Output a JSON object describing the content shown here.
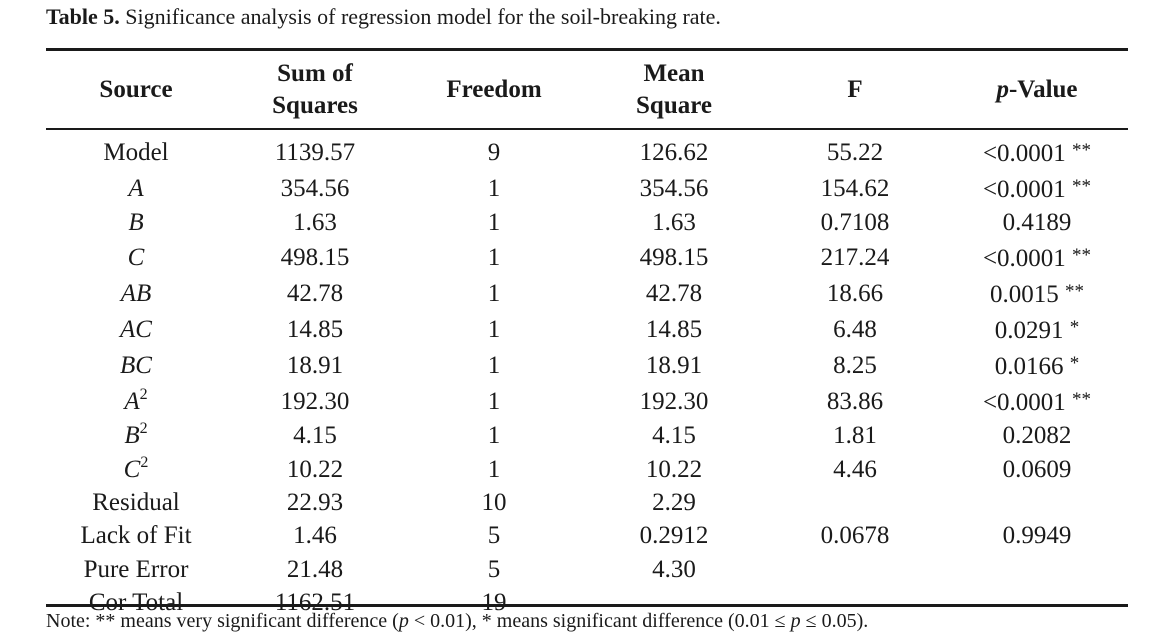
{
  "caption": {
    "label": "Table 5.",
    "text": "Significance analysis of regression model for the soil-breaking rate."
  },
  "headers": {
    "source": "Source",
    "sum_of_squares_line1": "Sum of",
    "sum_of_squares_line2": "Squares",
    "freedom": "Freedom",
    "mean_square_line1": "Mean",
    "mean_square_line2": "Square",
    "f": "F",
    "p_value_prefix": "p",
    "p_value_suffix": "-Value"
  },
  "rows": [
    {
      "source": "Model",
      "sup": "",
      "italic": false,
      "ss": "1139.57",
      "df": "9",
      "ms": "126.62",
      "f": "55.22",
      "p": "<0.0001",
      "sig": "**"
    },
    {
      "source": "A",
      "sup": "",
      "italic": true,
      "ss": "354.56",
      "df": "1",
      "ms": "354.56",
      "f": "154.62",
      "p": "<0.0001",
      "sig": "**"
    },
    {
      "source": "B",
      "sup": "",
      "italic": true,
      "ss": "1.63",
      "df": "1",
      "ms": "1.63",
      "f": "0.7108",
      "p": "0.4189",
      "sig": ""
    },
    {
      "source": "C",
      "sup": "",
      "italic": true,
      "ss": "498.15",
      "df": "1",
      "ms": "498.15",
      "f": "217.24",
      "p": "<0.0001",
      "sig": "**"
    },
    {
      "source": "AB",
      "sup": "",
      "italic": true,
      "ss": "42.78",
      "df": "1",
      "ms": "42.78",
      "f": "18.66",
      "p": "0.0015",
      "sig": "**"
    },
    {
      "source": "AC",
      "sup": "",
      "italic": true,
      "ss": "14.85",
      "df": "1",
      "ms": "14.85",
      "f": "6.48",
      "p": "0.0291",
      "sig": "*"
    },
    {
      "source": "BC",
      "sup": "",
      "italic": true,
      "ss": "18.91",
      "df": "1",
      "ms": "18.91",
      "f": "8.25",
      "p": "0.0166",
      "sig": "*"
    },
    {
      "source": "A",
      "sup": "2",
      "italic": true,
      "ss": "192.30",
      "df": "1",
      "ms": "192.30",
      "f": "83.86",
      "p": "<0.0001",
      "sig": "**"
    },
    {
      "source": "B",
      "sup": "2",
      "italic": true,
      "ss": "4.15",
      "df": "1",
      "ms": "4.15",
      "f": "1.81",
      "p": "0.2082",
      "sig": ""
    },
    {
      "source": "C",
      "sup": "2",
      "italic": true,
      "ss": "10.22",
      "df": "1",
      "ms": "10.22",
      "f": "4.46",
      "p": "0.0609",
      "sig": ""
    },
    {
      "source": "Residual",
      "sup": "",
      "italic": false,
      "ss": "22.93",
      "df": "10",
      "ms": "2.29",
      "f": "",
      "p": "",
      "sig": ""
    },
    {
      "source": "Lack of Fit",
      "sup": "",
      "italic": false,
      "ss": "1.46",
      "df": "5",
      "ms": "0.2912",
      "f": "0.0678",
      "p": "0.9949",
      "sig": ""
    },
    {
      "source": "Pure Error",
      "sup": "",
      "italic": false,
      "ss": "21.48",
      "df": "5",
      "ms": "4.30",
      "f": "",
      "p": "",
      "sig": ""
    },
    {
      "source": "Cor Total",
      "sup": "",
      "italic": false,
      "ss": "1162.51",
      "df": "19",
      "ms": "",
      "f": "",
      "p": "",
      "sig": ""
    }
  ],
  "note": {
    "prefix": "Note: ** means very significant difference (",
    "p1": "p",
    "cond1": " < 0.01), * means significant difference (0.01 ≤ ",
    "p2": "p",
    "cond2": " ≤ 0.05)."
  }
}
